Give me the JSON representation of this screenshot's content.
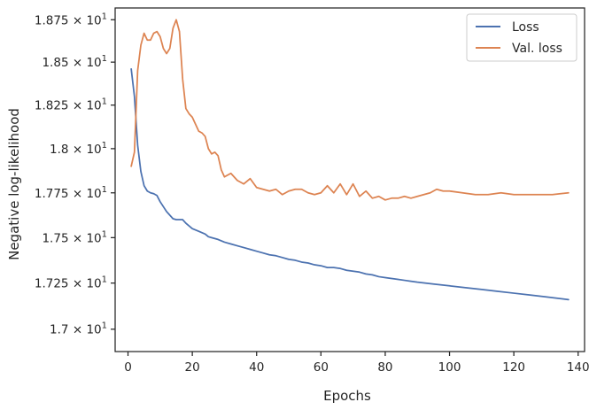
{
  "chart_data": {
    "type": "line",
    "xlabel": "Epochs",
    "ylabel": "Negative log-likelihood",
    "xlim": [
      -4,
      142
    ],
    "ylim": [
      16.88,
      18.82
    ],
    "xticks": [
      0,
      20,
      40,
      60,
      80,
      100,
      120,
      140
    ],
    "xtick_labels": [
      "0",
      "20",
      "40",
      "60",
      "80",
      "100",
      "120",
      "140"
    ],
    "yticks": [
      17.0,
      17.25,
      17.5,
      17.75,
      18.0,
      18.25,
      18.5,
      18.75
    ],
    "ytick_labels": [
      {
        "mantissa": "1.7",
        "base": "10",
        "exp": "1"
      },
      {
        "mantissa": "1.725",
        "base": "10",
        "exp": "1"
      },
      {
        "mantissa": "1.75",
        "base": "10",
        "exp": "1"
      },
      {
        "mantissa": "1.775",
        "base": "10",
        "exp": "1"
      },
      {
        "mantissa": "1.8",
        "base": "10",
        "exp": "1"
      },
      {
        "mantissa": "1.825",
        "base": "10",
        "exp": "1"
      },
      {
        "mantissa": "1.85",
        "base": "10",
        "exp": "1"
      },
      {
        "mantissa": "1.875",
        "base": "10",
        "exp": "1"
      }
    ],
    "log_scale_y": true,
    "grid": false,
    "legend_position": "top-right",
    "series": [
      {
        "name": "Loss",
        "color": "#4c72b0",
        "x": [
          1,
          2,
          3,
          4,
          5,
          6,
          7,
          8,
          9,
          10,
          12,
          14,
          15,
          16,
          17,
          18,
          20,
          22,
          24,
          25,
          26,
          28,
          30,
          32,
          34,
          36,
          38,
          40,
          42,
          44,
          46,
          48,
          50,
          52,
          54,
          56,
          58,
          60,
          62,
          64,
          66,
          68,
          70,
          72,
          74,
          76,
          78,
          80,
          82,
          84,
          86,
          88,
          90,
          95,
          100,
          105,
          110,
          115,
          120,
          125,
          130,
          137
        ],
        "y": [
          18.46,
          18.3,
          18.02,
          17.87,
          17.79,
          17.76,
          17.75,
          17.745,
          17.735,
          17.7,
          17.645,
          17.605,
          17.6,
          17.6,
          17.6,
          17.58,
          17.55,
          17.535,
          17.52,
          17.505,
          17.5,
          17.49,
          17.475,
          17.465,
          17.455,
          17.445,
          17.435,
          17.425,
          17.415,
          17.405,
          17.4,
          17.39,
          17.38,
          17.375,
          17.365,
          17.36,
          17.35,
          17.345,
          17.335,
          17.335,
          17.33,
          17.32,
          17.315,
          17.31,
          17.3,
          17.295,
          17.285,
          17.28,
          17.275,
          17.27,
          17.265,
          17.26,
          17.255,
          17.245,
          17.235,
          17.225,
          17.215,
          17.205,
          17.195,
          17.185,
          17.175,
          17.16
        ]
      },
      {
        "name": "Val. loss",
        "color": "#dd8452",
        "x": [
          1,
          2,
          3,
          4,
          5,
          6,
          7,
          8,
          9,
          10,
          11,
          12,
          13,
          14,
          15,
          16,
          17,
          18,
          19,
          20,
          21,
          22,
          23,
          24,
          25,
          26,
          27,
          28,
          29,
          30,
          32,
          34,
          36,
          38,
          40,
          42,
          44,
          46,
          48,
          50,
          52,
          54,
          56,
          58,
          60,
          62,
          64,
          66,
          68,
          70,
          72,
          74,
          76,
          78,
          80,
          82,
          84,
          86,
          88,
          90,
          92,
          94,
          96,
          98,
          100,
          104,
          108,
          112,
          116,
          120,
          124,
          128,
          132,
          137
        ],
        "y": [
          17.9,
          17.98,
          18.45,
          18.6,
          18.67,
          18.63,
          18.63,
          18.67,
          18.68,
          18.65,
          18.58,
          18.55,
          18.58,
          18.7,
          18.75,
          18.68,
          18.4,
          18.23,
          18.2,
          18.18,
          18.14,
          18.1,
          18.09,
          18.07,
          18.0,
          17.97,
          17.98,
          17.96,
          17.88,
          17.84,
          17.86,
          17.82,
          17.8,
          17.83,
          17.78,
          17.77,
          17.76,
          17.77,
          17.74,
          17.76,
          17.77,
          17.77,
          17.75,
          17.74,
          17.75,
          17.79,
          17.75,
          17.8,
          17.74,
          17.8,
          17.73,
          17.76,
          17.72,
          17.73,
          17.71,
          17.72,
          17.72,
          17.73,
          17.72,
          17.73,
          17.74,
          17.75,
          17.77,
          17.76,
          17.76,
          17.75,
          17.74,
          17.74,
          17.75,
          17.74,
          17.74,
          17.74,
          17.74,
          17.75
        ]
      }
    ]
  }
}
